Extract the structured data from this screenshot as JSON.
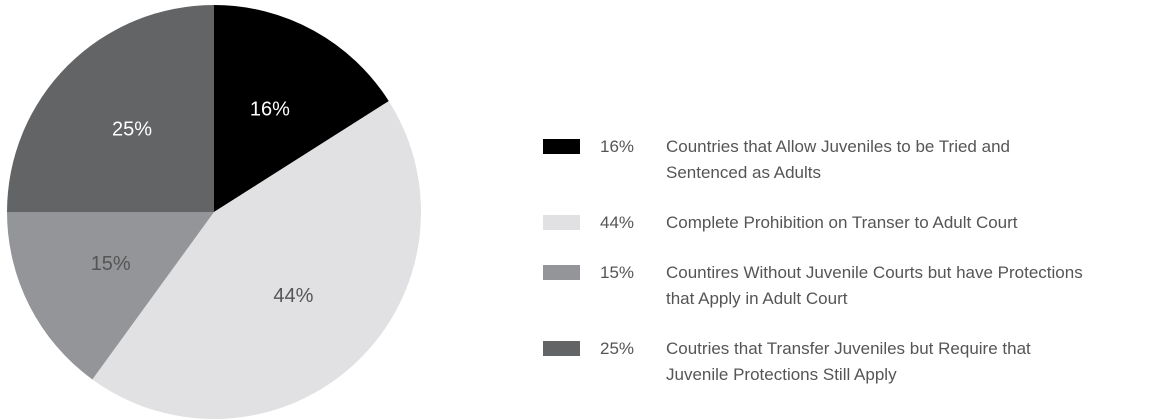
{
  "chart_data": {
    "type": "pie",
    "categories": [
      "Countries that Allow Juveniles to be Tried and Sentenced as Adults",
      "Complete Prohibition on Transer to Adult Court",
      "Countires Without Juvenile Courts but have Protections that Apply in Adult Court",
      "Coutries that Transfer Juveniles but Require that Juvenile Protections Still Apply"
    ],
    "values": [
      16,
      44,
      15,
      25
    ],
    "value_labels": [
      "16%",
      "44%",
      "15%",
      "25%"
    ],
    "colors": [
      "#000000",
      "#e1e1e3",
      "#939598",
      "#636466"
    ],
    "legend": "right"
  }
}
